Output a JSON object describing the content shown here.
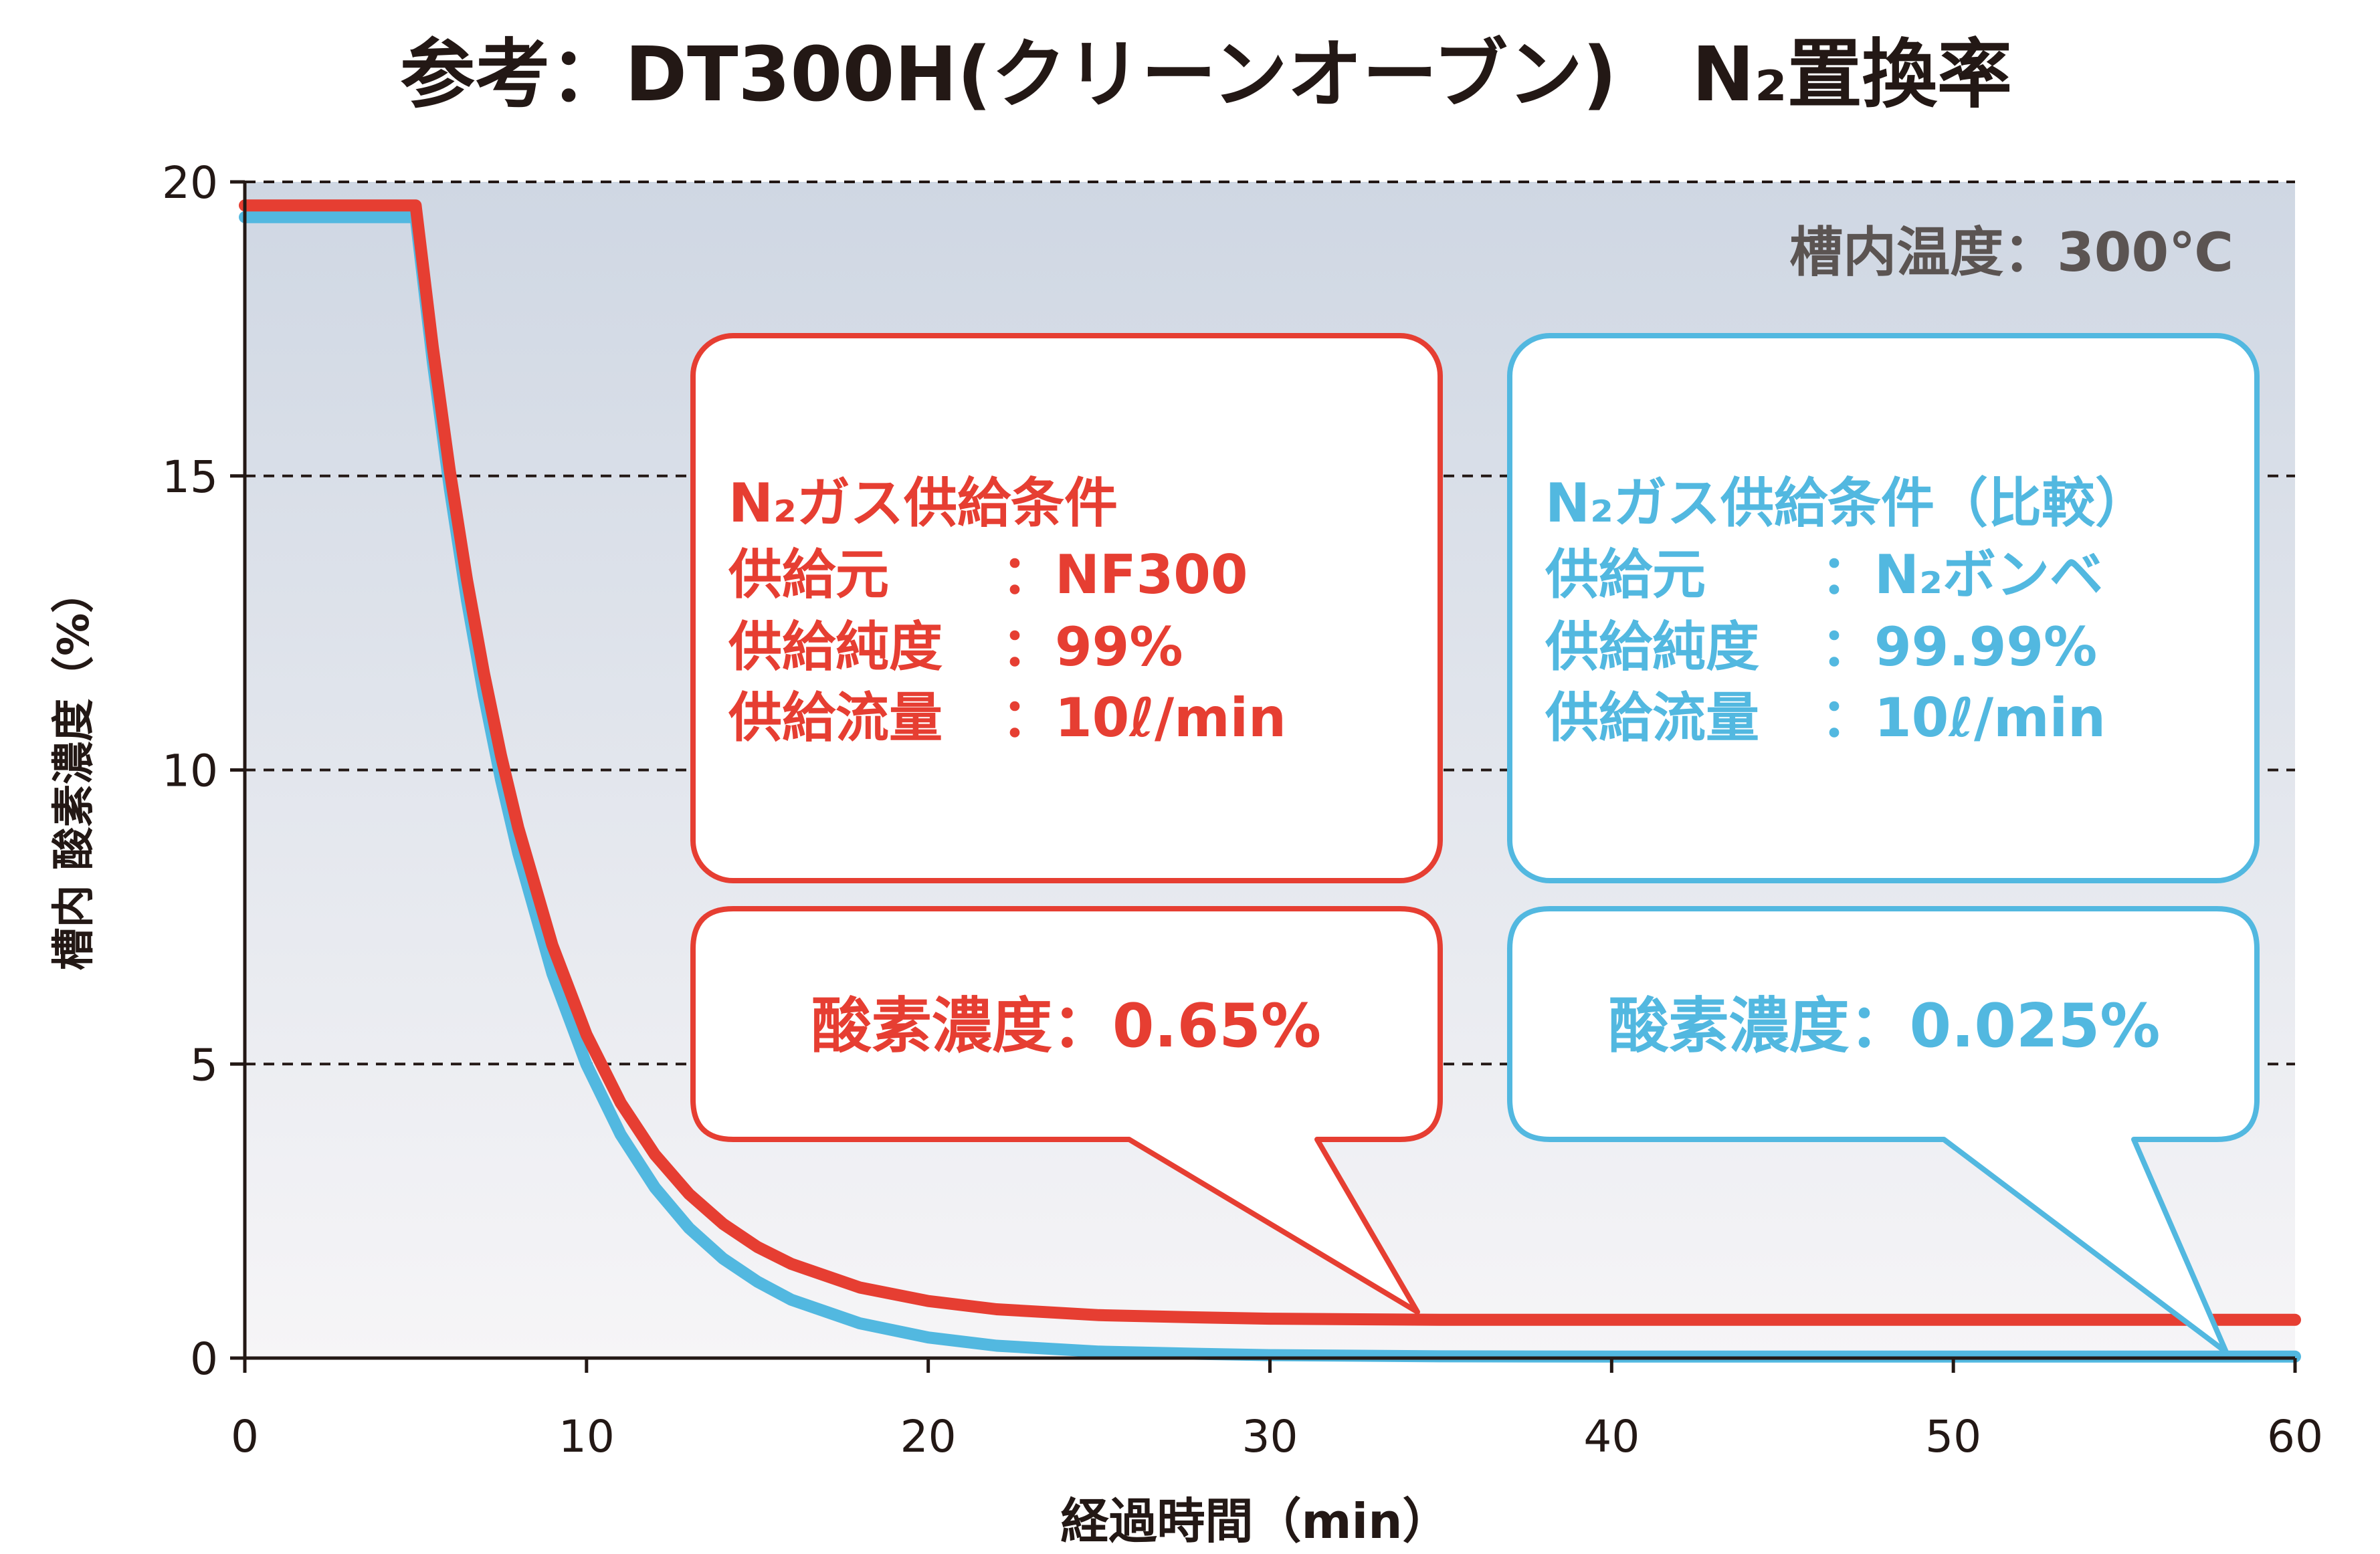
{
  "title": "参考：DT300H(クリーンオーブン)　N₂置換率",
  "annotation_temperature": "槽内温度：300℃",
  "colors": {
    "nf300": "#e63e32",
    "cylinder": "#52b8e0",
    "text_dark": "#231815",
    "text_gray": "#5b5452"
  },
  "boxes": {
    "red": {
      "heading": "N₂ガス供給条件",
      "rows": [
        {
          "label": "供給元",
          "value": "：NF300"
        },
        {
          "label": "供給純度",
          "value": "：99%"
        },
        {
          "label": "供給流量",
          "value": "：10ℓ/min"
        }
      ],
      "result": "酸素濃度：0.65%"
    },
    "blue": {
      "heading": "N₂ガス供給条件（比較）",
      "rows": [
        {
          "label": "供給元",
          "value": "：N₂ボンベ"
        },
        {
          "label": "供給純度",
          "value": "：99.99%"
        },
        {
          "label": "供給流量",
          "value": "：10ℓ/min"
        }
      ],
      "result": "酸素濃度：0.025%"
    }
  },
  "chart_data": {
    "type": "line",
    "title": "参考：DT300H(クリーンオーブン)　N₂置換率",
    "xlabel": "経過時間（min）",
    "ylabel": "槽内 酸素濃度（%）",
    "xlim": [
      0,
      60
    ],
    "ylim": [
      0,
      20
    ],
    "xticks": [
      "0",
      "10",
      "20",
      "30",
      "40",
      "50",
      "60"
    ],
    "yticks": [
      "0",
      "5",
      "10",
      "15",
      "20"
    ],
    "grid": "horizontal dashed",
    "x": [
      0,
      5,
      5.5,
      6,
      6.5,
      7,
      7.5,
      8,
      9,
      10,
      11,
      12,
      13,
      14,
      15,
      16,
      18,
      20,
      22,
      25,
      28,
      30,
      35,
      40,
      50,
      60
    ],
    "series": [
      {
        "color": "#e63e32",
        "values": [
          19.6,
          19.6,
          17.19,
          15.08,
          13.24,
          11.64,
          10.24,
          9.02,
          7.02,
          5.5,
          4.34,
          3.46,
          2.79,
          2.28,
          1.89,
          1.6,
          1.2,
          0.97,
          0.83,
          0.73,
          0.69,
          0.67,
          0.65,
          0.65,
          0.65,
          0.65
        ]
      },
      {
        "color": "#52b8e0",
        "values": [
          19.4,
          19.4,
          16.94,
          14.78,
          12.89,
          11.26,
          9.83,
          8.59,
          6.54,
          4.99,
          3.8,
          2.9,
          2.21,
          1.69,
          1.3,
          0.99,
          0.59,
          0.35,
          0.21,
          0.11,
          0.07,
          0.05,
          0.03,
          0.025,
          0.025,
          0.025
        ]
      }
    ]
  }
}
